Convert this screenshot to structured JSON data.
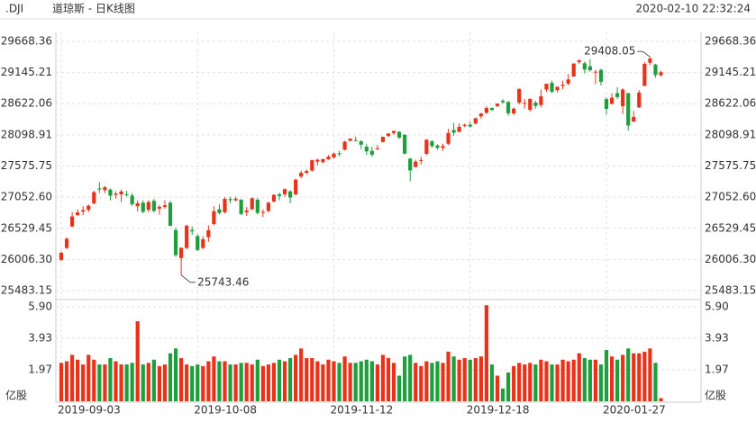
{
  "chart_data": {
    "type": "candlestick",
    "symbol": ".DJI",
    "title": "道琼斯 - 日K线图",
    "timestamp": "2020-02-10 22:32:24",
    "up_color": "#e8321a",
    "down_color": "#1e9e3c",
    "grid": true,
    "ylim": [
      25483.15,
      29668.36
    ],
    "yticks": [
      29668.36,
      29145.21,
      28622.06,
      28098.91,
      27575.75,
      {
        "value": 27052.6,
        "label": "27052.60"
      },
      26529.45,
      {
        "value": 26006.3,
        "label": "26006.30"
      },
      25483.15
    ],
    "volume_unit": "亿股",
    "volume_ylim": [
      0,
      5.9
    ],
    "volume_ticks": [
      {
        "value": 5.9,
        "label": "5.90"
      },
      3.93,
      1.97
    ],
    "categories": [
      "2019-09-03",
      null,
      null,
      null,
      null,
      null,
      null,
      null,
      null,
      null,
      null,
      null,
      null,
      null,
      null,
      null,
      null,
      null,
      null,
      null,
      null,
      null,
      null,
      null,
      null,
      "2019-10-08",
      null,
      null,
      null,
      null,
      null,
      null,
      null,
      null,
      null,
      null,
      null,
      null,
      null,
      null,
      null,
      null,
      null,
      null,
      null,
      null,
      null,
      null,
      null,
      null,
      "2019-11-12",
      null,
      null,
      null,
      null,
      null,
      null,
      null,
      null,
      null,
      null,
      null,
      null,
      null,
      null,
      null,
      null,
      null,
      null,
      null,
      null,
      null,
      null,
      null,
      null,
      "2019-12-18",
      null,
      null,
      null,
      null,
      null,
      null,
      null,
      null,
      null,
      null,
      null,
      null,
      null,
      null,
      null,
      null,
      null,
      null,
      null,
      null,
      null,
      null,
      null,
      null,
      "2020-01-27",
      null,
      null,
      null,
      null,
      null,
      null,
      null,
      null,
      null,
      null
    ],
    "ohlc": [
      [
        26000,
        26140,
        25978,
        26118
      ],
      [
        26200,
        26380,
        26180,
        26355
      ],
      [
        26560,
        26800,
        26550,
        26728
      ],
      [
        26750,
        26850,
        26740,
        26797
      ],
      [
        26810,
        26900,
        26750,
        26835
      ],
      [
        26840,
        26930,
        26800,
        26909
      ],
      [
        26950,
        27160,
        26930,
        27137
      ],
      [
        27200,
        27306,
        27120,
        27182
      ],
      [
        27170,
        27240,
        27120,
        27219
      ],
      [
        27180,
        27200,
        27000,
        27076
      ],
      [
        27090,
        27150,
        27030,
        27111
      ],
      [
        27100,
        27180,
        26970,
        27147
      ],
      [
        27100,
        27160,
        27060,
        27094
      ],
      [
        27080,
        27120,
        26900,
        26935
      ],
      [
        26900,
        27000,
        26810,
        26950
      ],
      [
        26960,
        27000,
        26780,
        26807
      ],
      [
        26840,
        27000,
        26800,
        26970
      ],
      [
        26990,
        27020,
        26800,
        26820
      ],
      [
        26860,
        26920,
        26760,
        26891
      ],
      [
        26890,
        27000,
        26860,
        26917
      ],
      [
        26960,
        26990,
        26560,
        26573
      ],
      [
        26500,
        26540,
        26050,
        26079
      ],
      [
        26030,
        26210,
        25743.46,
        26202
      ],
      [
        26200,
        26590,
        26180,
        26574
      ],
      [
        26500,
        26560,
        26420,
        26478
      ],
      [
        26400,
        26430,
        26150,
        26165
      ],
      [
        26200,
        26400,
        26180,
        26347
      ],
      [
        26380,
        26580,
        26300,
        26497
      ],
      [
        26600,
        26900,
        26580,
        26817
      ],
      [
        26850,
        26930,
        26760,
        26787
      ],
      [
        26800,
        27050,
        26780,
        27025
      ],
      [
        27020,
        27060,
        26950,
        27001
      ],
      [
        27000,
        27060,
        26980,
        27026
      ],
      [
        27010,
        27020,
        26750,
        26771
      ],
      [
        26800,
        26890,
        26740,
        26828
      ],
      [
        26850,
        27050,
        26830,
        27034
      ],
      [
        27010,
        27040,
        26760,
        26788
      ],
      [
        26790,
        26850,
        26720,
        26806
      ],
      [
        26820,
        26980,
        26800,
        26959
      ],
      [
        26980,
        27100,
        26960,
        27091
      ],
      [
        27100,
        27130,
        27000,
        27071
      ],
      [
        27100,
        27200,
        27060,
        27187
      ],
      [
        27150,
        27170,
        26950,
        27046
      ],
      [
        27100,
        27360,
        27080,
        27347
      ],
      [
        27400,
        27500,
        27370,
        27462
      ],
      [
        27460,
        27520,
        27440,
        27492
      ],
      [
        27500,
        27680,
        27480,
        27675
      ],
      [
        27650,
        27700,
        27590,
        27681
      ],
      [
        27640,
        27700,
        27620,
        27691
      ],
      [
        27690,
        27760,
        27680,
        27732
      ],
      [
        27720,
        27800,
        27700,
        27784
      ],
      [
        27790,
        27830,
        27740,
        27782
      ],
      [
        27850,
        28000,
        27840,
        27984
      ],
      [
        28000,
        28040,
        27990,
        28036
      ],
      [
        28010,
        28070,
        27990,
        28004
      ],
      [
        27990,
        28010,
        27860,
        27934
      ],
      [
        27900,
        27950,
        27760,
        27821
      ],
      [
        27830,
        27900,
        27730,
        27766
      ],
      [
        27860,
        27930,
        27840,
        27875
      ],
      [
        27980,
        28070,
        27970,
        28066
      ],
      [
        28080,
        28130,
        28060,
        28121
      ],
      [
        28130,
        28170,
        28100,
        28164
      ],
      [
        28150,
        28160,
        28030,
        28051
      ],
      [
        28100,
        28110,
        27770,
        27783
      ],
      [
        27700,
        27710,
        27320,
        27502
      ],
      [
        27560,
        27680,
        27550,
        27649
      ],
      [
        27660,
        27730,
        27600,
        27677
      ],
      [
        27780,
        28030,
        27760,
        28015
      ],
      [
        27990,
        28010,
        27880,
        27909
      ],
      [
        27920,
        27940,
        27850,
        27881
      ],
      [
        27880,
        27950,
        27830,
        27911
      ],
      [
        27950,
        28200,
        27930,
        28132
      ],
      [
        28180,
        28300,
        28080,
        28135
      ],
      [
        28150,
        28290,
        28140,
        28235
      ],
      [
        28250,
        28290,
        28230,
        28267
      ],
      [
        28270,
        28320,
        28220,
        28239
      ],
      [
        28290,
        28390,
        28270,
        28377
      ],
      [
        28410,
        28470,
        28370,
        28455
      ],
      [
        28470,
        28580,
        28450,
        28551
      ],
      [
        28550,
        28560,
        28500,
        28515
      ],
      [
        28580,
        28630,
        28570,
        28621
      ],
      [
        28670,
        28700,
        28620,
        28645
      ],
      [
        28650,
        28670,
        28420,
        28462
      ],
      [
        28460,
        28560,
        28430,
        28538
      ],
      [
        28640,
        28880,
        28610,
        28869
      ],
      [
        28630,
        28700,
        28540,
        28635
      ],
      [
        28520,
        28710,
        28490,
        28703
      ],
      [
        28640,
        28670,
        28540,
        28584
      ],
      [
        28600,
        28860,
        28560,
        28745
      ],
      [
        28860,
        28960,
        28820,
        28957
      ],
      [
        28970,
        29010,
        28800,
        28824
      ],
      [
        28850,
        28910,
        28810,
        28907
      ],
      [
        28920,
        29010,
        28860,
        28940
      ],
      [
        28960,
        29120,
        28930,
        29030
      ],
      [
        29080,
        29300,
        29070,
        29297
      ],
      [
        29320,
        29370,
        29290,
        29348
      ],
      [
        29300,
        29330,
        29130,
        29196
      ],
      [
        29250,
        29370,
        29160,
        29186
      ],
      [
        29150,
        29190,
        28950,
        29160
      ],
      [
        29190,
        29210,
        28930,
        28990
      ],
      [
        28700,
        28730,
        28440,
        28535
      ],
      [
        28620,
        28800,
        28610,
        28723
      ],
      [
        28800,
        28900,
        28700,
        28734
      ],
      [
        28580,
        28880,
        28450,
        28860
      ],
      [
        28800,
        28800,
        28170,
        28256
      ],
      [
        28320,
        28500,
        28320,
        28400
      ],
      [
        28560,
        28850,
        28550,
        28808
      ],
      [
        28920,
        29320,
        28920,
        29290
      ],
      [
        29310,
        29408.05,
        29270,
        29380
      ],
      [
        29280,
        29290,
        29060,
        29103
      ],
      [
        29100,
        29180,
        29080,
        29150
      ]
    ],
    "volume": [
      2.4,
      2.5,
      2.9,
      2.6,
      2.3,
      2.9,
      2.6,
      2.3,
      2.3,
      2.7,
      2.5,
      2.3,
      2.3,
      2.4,
      5.0,
      2.3,
      2.4,
      2.6,
      2.2,
      2.3,
      3.0,
      3.3,
      2.7,
      2.3,
      2.2,
      2.3,
      2.2,
      2.5,
      2.8,
      2.5,
      2.5,
      2.3,
      2.3,
      2.4,
      2.4,
      2.3,
      2.6,
      2.2,
      2.3,
      2.4,
      2.6,
      2.5,
      2.7,
      2.9,
      3.3,
      2.7,
      2.7,
      2.5,
      2.3,
      2.6,
      2.5,
      2.4,
      2.8,
      2.4,
      2.4,
      2.5,
      2.6,
      2.5,
      2.3,
      2.9,
      2.7,
      2.4,
      1.6,
      2.8,
      2.9,
      2.4,
      2.2,
      2.5,
      2.4,
      2.5,
      2.4,
      3.1,
      2.8,
      2.6,
      2.7,
      2.6,
      2.7,
      2.8,
      6.0,
      2.3,
      1.6,
      0.8,
      1.8,
      2.2,
      2.4,
      2.3,
      2.4,
      2.3,
      2.6,
      2.5,
      2.3,
      2.3,
      2.6,
      2.5,
      2.6,
      3.0,
      2.7,
      2.6,
      2.6,
      2.3,
      3.2,
      2.8,
      2.6,
      2.9,
      3.3,
      3.0,
      3.0,
      3.1,
      3.3,
      2.4,
      0.2
    ]
  }
}
